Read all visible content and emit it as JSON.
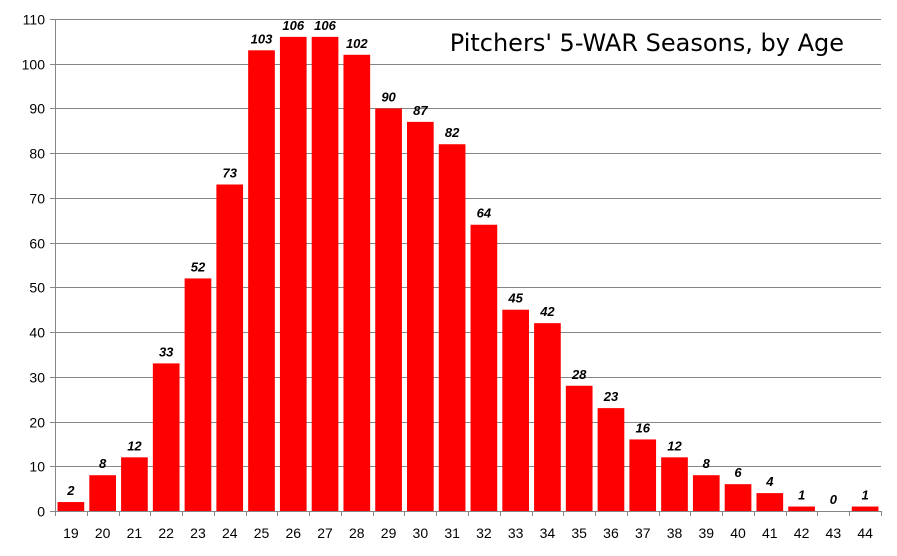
{
  "chart_data": {
    "type": "bar",
    "title": "Pitchers' 5-WAR Seasons, by Age",
    "xlabel": "",
    "ylabel": "",
    "categories": [
      "19",
      "20",
      "21",
      "22",
      "23",
      "24",
      "25",
      "26",
      "27",
      "28",
      "29",
      "30",
      "31",
      "32",
      "33",
      "34",
      "35",
      "36",
      "37",
      "38",
      "39",
      "40",
      "41",
      "42",
      "43",
      "44"
    ],
    "values": [
      2,
      8,
      12,
      33,
      52,
      73,
      103,
      106,
      106,
      102,
      90,
      87,
      82,
      64,
      45,
      42,
      28,
      23,
      16,
      12,
      8,
      6,
      4,
      1,
      0,
      1
    ],
    "ylim": [
      0,
      110
    ],
    "yticks": [
      0,
      10,
      20,
      30,
      40,
      50,
      60,
      70,
      80,
      90,
      100,
      110
    ],
    "grid": true,
    "data_labels": true,
    "bar_color": "#ff0000",
    "grid_color": "#868686"
  }
}
